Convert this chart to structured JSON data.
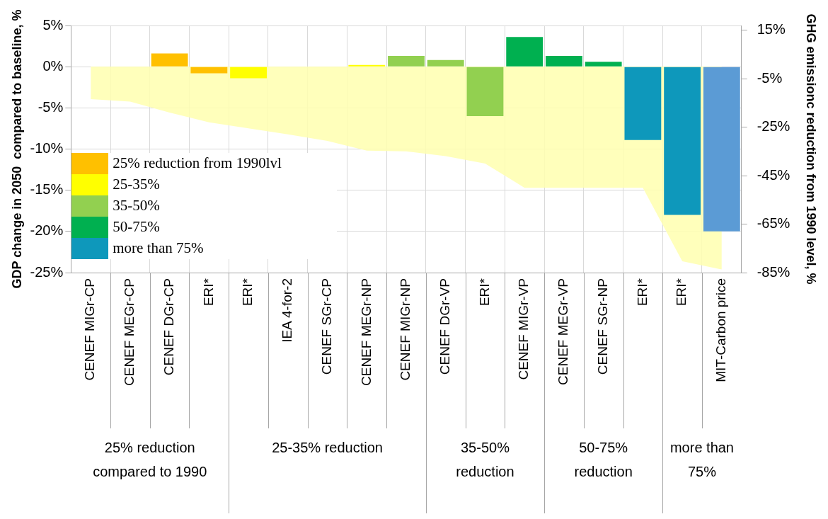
{
  "chart_data": {
    "type": "bar",
    "categories": [
      "CENEF MIGr-CP",
      "CENEF MEGr-CP",
      "CENEF DGr-CP",
      "ERI*",
      "ERI*",
      "IEA 4-for-2",
      "CENEF SGr-CP",
      "CENEF MEGr-NP",
      "CENEF MIGr-NP",
      "CENEF DGr-VP",
      "ERI*",
      "CENEF MIGr-VP",
      "CENEF MEGr-VP",
      "CENEF SGr-NP",
      "ERI*",
      "ERI*",
      "MIT-Carbon price"
    ],
    "series": [
      {
        "type": "area",
        "axis": "y2",
        "color": "#ffffb0",
        "values": [
          -13.5,
          -14.5,
          -19,
          -23,
          -25.5,
          -28,
          -30.7,
          -34.7,
          -35,
          -37,
          -40,
          -50,
          -50,
          -50,
          -50,
          -80.3,
          -83.7
        ]
      },
      {
        "name": "25% reduction from 1990lvl",
        "color": "#ffc000",
        "values": [
          0,
          0,
          1.6,
          -0.8,
          null,
          null,
          null,
          null,
          null,
          null,
          null,
          null,
          null,
          null,
          null,
          null,
          null
        ]
      },
      {
        "name": "25-35%",
        "color": "#ffff00",
        "values": [
          null,
          null,
          null,
          null,
          -1.4,
          0,
          0,
          0.2,
          null,
          null,
          null,
          null,
          null,
          null,
          null,
          null,
          null
        ]
      },
      {
        "name": "35-50%",
        "color": "#92d050",
        "values": [
          null,
          null,
          null,
          null,
          null,
          null,
          null,
          null,
          1.3,
          0.8,
          -6.0,
          null,
          null,
          null,
          null,
          null,
          null
        ]
      },
      {
        "name": "50-75%",
        "color": "#00b050",
        "values": [
          null,
          null,
          null,
          null,
          null,
          null,
          null,
          null,
          null,
          null,
          null,
          3.6,
          1.3,
          0.6,
          null,
          null,
          null
        ]
      },
      {
        "name": "more than 75%",
        "color": "#0e98bb",
        "values": [
          null,
          null,
          null,
          null,
          null,
          null,
          null,
          null,
          null,
          null,
          null,
          null,
          null,
          null,
          -8.9,
          -18.0,
          null
        ]
      },
      {
        "color": "#5b9bd5",
        "values": [
          null,
          null,
          null,
          null,
          null,
          null,
          null,
          null,
          null,
          null,
          null,
          null,
          null,
          null,
          null,
          null,
          -20.0
        ]
      }
    ],
    "ylabel": "GDP change in 2050  compared to baseline, %",
    "y2label": "GHG emissionc reduction from 1990 level, %",
    "ylim": [
      -25,
      5
    ],
    "yticks": [
      {
        "value": 5,
        "label": "5%"
      },
      {
        "value": 0,
        "label": "0%"
      },
      {
        "value": -5,
        "label": "-5%"
      },
      {
        "value": -10,
        "label": "-10%"
      },
      {
        "value": -15,
        "label": "-15%"
      },
      {
        "value": -20,
        "label": "-20%"
      },
      {
        "value": -25,
        "label": "-25%"
      }
    ],
    "y2lim": [
      -85,
      16.9
    ],
    "y2ticks": [
      {
        "value": 15,
        "label": "15%"
      },
      {
        "value": -5,
        "label": "-5%"
      },
      {
        "value": -25,
        "label": "-25%"
      },
      {
        "value": -45,
        "label": "-45%"
      },
      {
        "value": -65,
        "label": "-65%"
      },
      {
        "value": -85,
        "label": "-85%"
      }
    ],
    "grid": true,
    "legend": "left",
    "annotations": [
      "25% reduction compared to 1990",
      "25-35% reduction",
      "35-50% reduction",
      "50-75% reduction",
      "more than 75%"
    ]
  }
}
